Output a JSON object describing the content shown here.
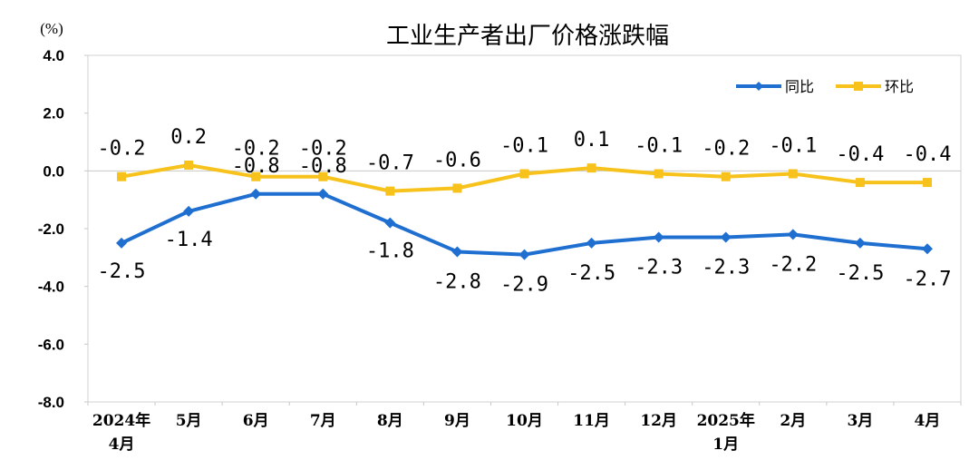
{
  "chart_data": {
    "type": "line",
    "title": "工业生产者出厂价格涨跌幅",
    "ylabel": "(%)",
    "ylim": [
      -8.0,
      4.0
    ],
    "yticks": [
      "4.0",
      "2.0",
      "0.0",
      "-2.0",
      "-4.0",
      "-6.0",
      "-8.0"
    ],
    "ytick_values": [
      4,
      2,
      0,
      -2,
      -4,
      -6,
      -8
    ],
    "categories": [
      [
        "2024年",
        "4月"
      ],
      [
        "5月"
      ],
      [
        "6月"
      ],
      [
        "7月"
      ],
      [
        "8月"
      ],
      [
        "9月"
      ],
      [
        "10月"
      ],
      [
        "11月"
      ],
      [
        "12月"
      ],
      [
        "2025年",
        "1月"
      ],
      [
        "2月"
      ],
      [
        "3月"
      ],
      [
        "4月"
      ]
    ],
    "legend_position": "top-right",
    "series": [
      {
        "name": "同比",
        "color": "#1f6fd1",
        "marker": "diamond",
        "values": [
          -2.5,
          -1.4,
          -0.8,
          -0.8,
          -1.8,
          -2.8,
          -2.9,
          -2.5,
          -2.3,
          -2.3,
          -2.2,
          -2.5,
          -2.7
        ],
        "labels": [
          "-2.5",
          "-1.4",
          "-0.8",
          "-0.8",
          "-1.8",
          "-2.8",
          "-2.9",
          "-2.5",
          "-2.3",
          "-2.3",
          "-2.2",
          "-2.5",
          "-2.7"
        ]
      },
      {
        "name": "环比",
        "color": "#f6c21b",
        "marker": "square",
        "values": [
          -0.2,
          0.2,
          -0.2,
          -0.2,
          -0.7,
          -0.6,
          -0.1,
          0.1,
          -0.1,
          -0.2,
          -0.1,
          -0.4,
          -0.4
        ],
        "labels": [
          "-0.2",
          "0.2",
          "-0.2",
          "-0.2",
          "-0.7",
          "-0.6",
          "-0.1",
          "0.1",
          "-0.1",
          "-0.2",
          "-0.1",
          "-0.4",
          "-0.4"
        ]
      }
    ]
  }
}
